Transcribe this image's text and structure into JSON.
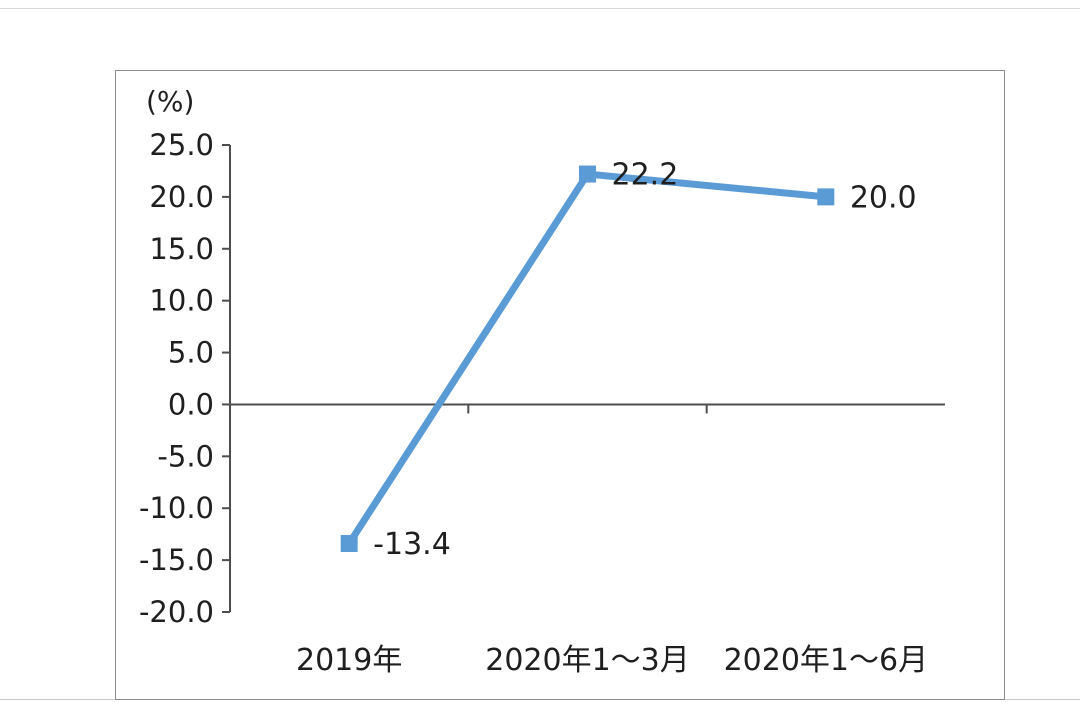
{
  "chart": {
    "unit_label": "(%)"
  },
  "chart_data": {
    "type": "line",
    "categories": [
      "2019年",
      "2020年1～3月",
      "2020年1～6月"
    ],
    "values": [
      -13.4,
      22.2,
      20.0
    ],
    "value_display": [
      "-13.4",
      "22.2",
      "20.0"
    ],
    "y_tick_values": [
      25.0,
      20.0,
      15.0,
      10.0,
      5.0,
      0.0,
      -5.0,
      -10.0,
      -15.0,
      -20.0
    ],
    "y_tick_display": [
      "25.0",
      "20.0",
      "15.0",
      "10.0",
      "5.0",
      "0.0",
      "-5.0",
      "-10.0",
      "-15.0",
      "-20.0"
    ],
    "title": "",
    "xlabel": "",
    "ylabel": "(%)",
    "ylim": [
      -20.0,
      25.0
    ],
    "grid": false,
    "legend": "none",
    "line_color": "#5b9bd5",
    "marker": "square",
    "marker_color": "#5b9bd5",
    "axis_color": "#4d4d4d",
    "text_color": "#1f1f1f",
    "frame_color": "#8c8c8c"
  }
}
